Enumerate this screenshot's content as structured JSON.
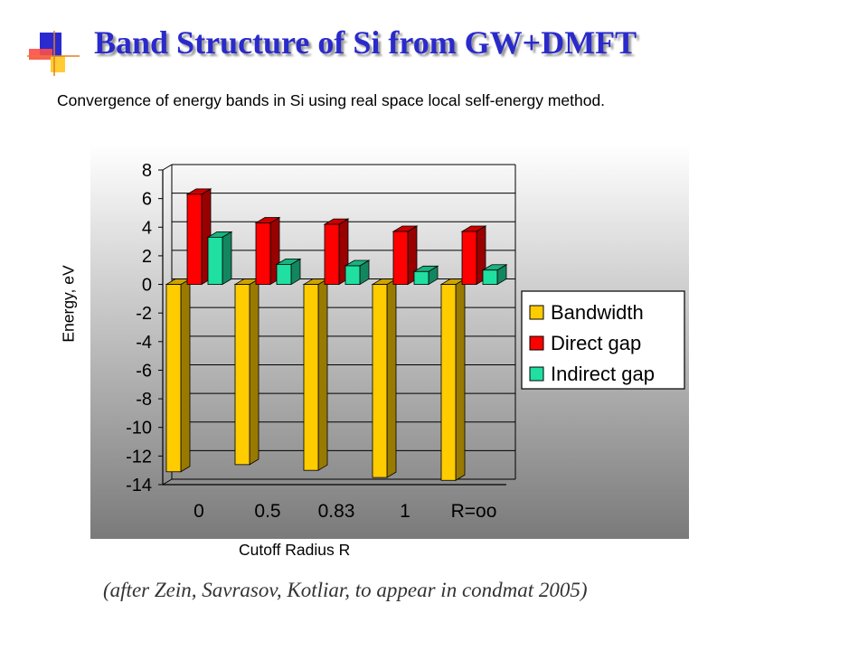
{
  "header": {
    "title": "Band Structure of Si from GW+DMFT",
    "subtitle": "Convergence of energy bands in Si using real space local self-energy method."
  },
  "footer": {
    "citation": "(after Zein, Savrasov, Kotliar, to appear in condmat 2005)"
  },
  "colors": {
    "title": "#2a2acc",
    "bandwidth": "#ffcc00",
    "direct_gap": "#ff0000",
    "indirect_gap": "#1fe0a0"
  },
  "chart_data": {
    "type": "bar",
    "title": "",
    "xlabel": "Cutoff Radius  R",
    "ylabel": "Energy, eV",
    "categories": [
      "0",
      "0.5",
      "0.83",
      "1",
      "R=oo"
    ],
    "ylim": [
      -14,
      8
    ],
    "yticks": [
      8,
      6,
      4,
      2,
      0,
      -2,
      -4,
      -6,
      -8,
      -10,
      -12,
      -14
    ],
    "grid": true,
    "legend_position": "right",
    "style": "3d-bars, gradient-background",
    "series": [
      {
        "name": "Bandwidth",
        "color": "#ffcc00",
        "values": [
          -13.1,
          -12.6,
          -13.0,
          -13.5,
          -13.7
        ]
      },
      {
        "name": "Direct gap",
        "color": "#ff0000",
        "values": [
          6.3,
          4.3,
          4.2,
          3.7,
          3.7
        ]
      },
      {
        "name": "Indirect gap",
        "color": "#1fe0a0",
        "values": [
          3.3,
          1.4,
          1.3,
          0.9,
          1.0
        ]
      }
    ]
  }
}
